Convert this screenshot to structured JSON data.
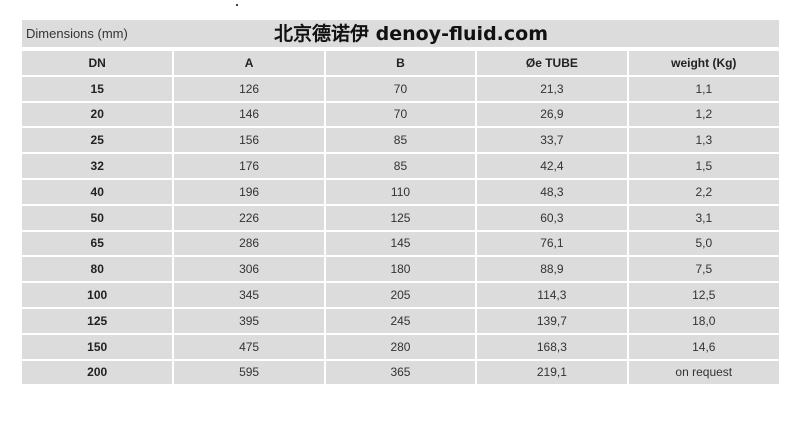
{
  "title": "Dimensions (mm)",
  "columns": [
    "DN",
    "A",
    "B",
    "Øe TUBE",
    "weight (Kg)"
  ],
  "rows": [
    [
      "15",
      "126",
      "70",
      "21,3",
      "1,1"
    ],
    [
      "20",
      "146",
      "70",
      "26,9",
      "1,2"
    ],
    [
      "25",
      "156",
      "85",
      "33,7",
      "1,3"
    ],
    [
      "32",
      "176",
      "85",
      "42,4",
      "1,5"
    ],
    [
      "40",
      "196",
      "110",
      "48,3",
      "2,2"
    ],
    [
      "50",
      "226",
      "125",
      "60,3",
      "3,1"
    ],
    [
      "65",
      "286",
      "145",
      "76,1",
      "5,0"
    ],
    [
      "80",
      "306",
      "180",
      "88,9",
      "7,5"
    ],
    [
      "100",
      "345",
      "205",
      "114,3",
      "12,5"
    ],
    [
      "125",
      "395",
      "245",
      "139,7",
      "18,0"
    ],
    [
      "150",
      "475",
      "280",
      "168,3",
      "14,6"
    ],
    [
      "200",
      "595",
      "365",
      "219,1",
      "on request"
    ]
  ],
  "watermark": "北京德诺伊 denoy-fluid.com"
}
